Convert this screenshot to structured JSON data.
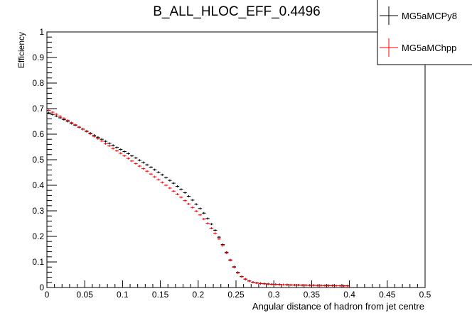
{
  "chart_data": {
    "type": "scatter",
    "title": "B_ALL_HLOC_EFF_0.4496",
    "xlabel": "Angular distance of hadron from jet centre",
    "ylabel": "Efficiency",
    "xlim": [
      0,
      0.5
    ],
    "ylim": [
      0,
      1
    ],
    "x_ticks": [
      "0",
      "0.05",
      "0.1",
      "0.15",
      "0.2",
      "0.25",
      "0.3",
      "0.35",
      "0.4",
      "0.45",
      "0.5"
    ],
    "y_ticks": [
      "0",
      "0.1",
      "0.2",
      "0.3",
      "0.4",
      "0.5",
      "0.6",
      "0.7",
      "0.8",
      "0.9",
      "1"
    ],
    "legend_position": "top-right",
    "series": [
      {
        "name": "MG5aMCPy8",
        "color": "#000000",
        "x": [
          0.0025,
          0.0075,
          0.0125,
          0.0175,
          0.0225,
          0.0275,
          0.0325,
          0.0375,
          0.0425,
          0.0475,
          0.0525,
          0.0575,
          0.0625,
          0.0675,
          0.0725,
          0.0775,
          0.0825,
          0.0875,
          0.0925,
          0.0975,
          0.1025,
          0.1075,
          0.1125,
          0.1175,
          0.1225,
          0.1275,
          0.1325,
          0.1375,
          0.1425,
          0.1475,
          0.1525,
          0.1575,
          0.1625,
          0.1675,
          0.1725,
          0.1775,
          0.1825,
          0.1875,
          0.1925,
          0.1975,
          0.2025,
          0.2075,
          0.2125,
          0.2175,
          0.2225,
          0.2275,
          0.2325,
          0.2375,
          0.2425,
          0.2475,
          0.2525,
          0.2575,
          0.2625,
          0.2675,
          0.2725,
          0.2775,
          0.2825,
          0.2875,
          0.2925,
          0.2975,
          0.3025,
          0.3075,
          0.3125,
          0.3175,
          0.3225,
          0.3275,
          0.3325,
          0.3375,
          0.3425,
          0.3475,
          0.3525,
          0.3575,
          0.3625,
          0.3675,
          0.3725,
          0.3775,
          0.3825,
          0.3875,
          0.3925,
          0.3975
        ],
        "values": [
          0.683,
          0.677,
          0.671,
          0.664,
          0.657,
          0.65,
          0.642,
          0.635,
          0.627,
          0.62,
          0.612,
          0.604,
          0.596,
          0.588,
          0.58,
          0.572,
          0.564,
          0.556,
          0.548,
          0.54,
          0.532,
          0.524,
          0.515,
          0.507,
          0.498,
          0.489,
          0.48,
          0.471,
          0.461,
          0.451,
          0.441,
          0.43,
          0.419,
          0.408,
          0.396,
          0.384,
          0.371,
          0.357,
          0.342,
          0.326,
          0.309,
          0.291,
          0.27,
          0.248,
          0.224,
          0.197,
          0.168,
          0.138,
          0.108,
          0.081,
          0.059,
          0.043,
          0.033,
          0.026,
          0.021,
          0.018,
          0.016,
          0.015,
          0.014,
          0.013,
          0.012,
          0.012,
          0.011,
          0.011,
          0.01,
          0.01,
          0.01,
          0.009,
          0.009,
          0.009,
          0.009,
          0.008,
          0.008,
          0.008,
          0.008,
          0.008,
          0.007,
          0.007,
          0.007,
          0.007
        ]
      },
      {
        "name": "MG5aMChpp",
        "color": "#ff0000",
        "x": [
          0.0025,
          0.0075,
          0.0125,
          0.0175,
          0.0225,
          0.0275,
          0.0325,
          0.0375,
          0.0425,
          0.0475,
          0.0525,
          0.0575,
          0.0625,
          0.0675,
          0.0725,
          0.0775,
          0.0825,
          0.0875,
          0.0925,
          0.0975,
          0.1025,
          0.1075,
          0.1125,
          0.1175,
          0.1225,
          0.1275,
          0.1325,
          0.1375,
          0.1425,
          0.1475,
          0.1525,
          0.1575,
          0.1625,
          0.1675,
          0.1725,
          0.1775,
          0.1825,
          0.1875,
          0.1925,
          0.1975,
          0.2025,
          0.2075,
          0.2125,
          0.2175,
          0.2225,
          0.2275,
          0.2325,
          0.2375,
          0.2425,
          0.2475,
          0.2525,
          0.2575,
          0.2625,
          0.2675,
          0.2725,
          0.2775,
          0.2825,
          0.2875,
          0.2925,
          0.2975,
          0.3025,
          0.3075,
          0.3125,
          0.3175,
          0.3225,
          0.3275,
          0.3325,
          0.3375,
          0.3425,
          0.3475,
          0.3525,
          0.3575,
          0.3625,
          0.3675,
          0.3725,
          0.3775,
          0.3825,
          0.3875,
          0.3925,
          0.3975
        ],
        "values": [
          0.693,
          0.686,
          0.678,
          0.67,
          0.662,
          0.654,
          0.645,
          0.637,
          0.628,
          0.619,
          0.61,
          0.601,
          0.591,
          0.582,
          0.573,
          0.563,
          0.554,
          0.544,
          0.535,
          0.525,
          0.515,
          0.505,
          0.495,
          0.485,
          0.475,
          0.465,
          0.455,
          0.444,
          0.433,
          0.422,
          0.411,
          0.4,
          0.389,
          0.377,
          0.365,
          0.353,
          0.34,
          0.327,
          0.313,
          0.299,
          0.284,
          0.268,
          0.251,
          0.232,
          0.212,
          0.19,
          0.164,
          0.135,
          0.106,
          0.079,
          0.057,
          0.042,
          0.032,
          0.025,
          0.02,
          0.017,
          0.015,
          0.014,
          0.013,
          0.012,
          0.012,
          0.011,
          0.011,
          0.01,
          0.01,
          0.009,
          0.009,
          0.009,
          0.009,
          0.008,
          0.008,
          0.008,
          0.008,
          0.007,
          0.007,
          0.007,
          0.007,
          0.007,
          0.006,
          0.006
        ]
      }
    ]
  }
}
